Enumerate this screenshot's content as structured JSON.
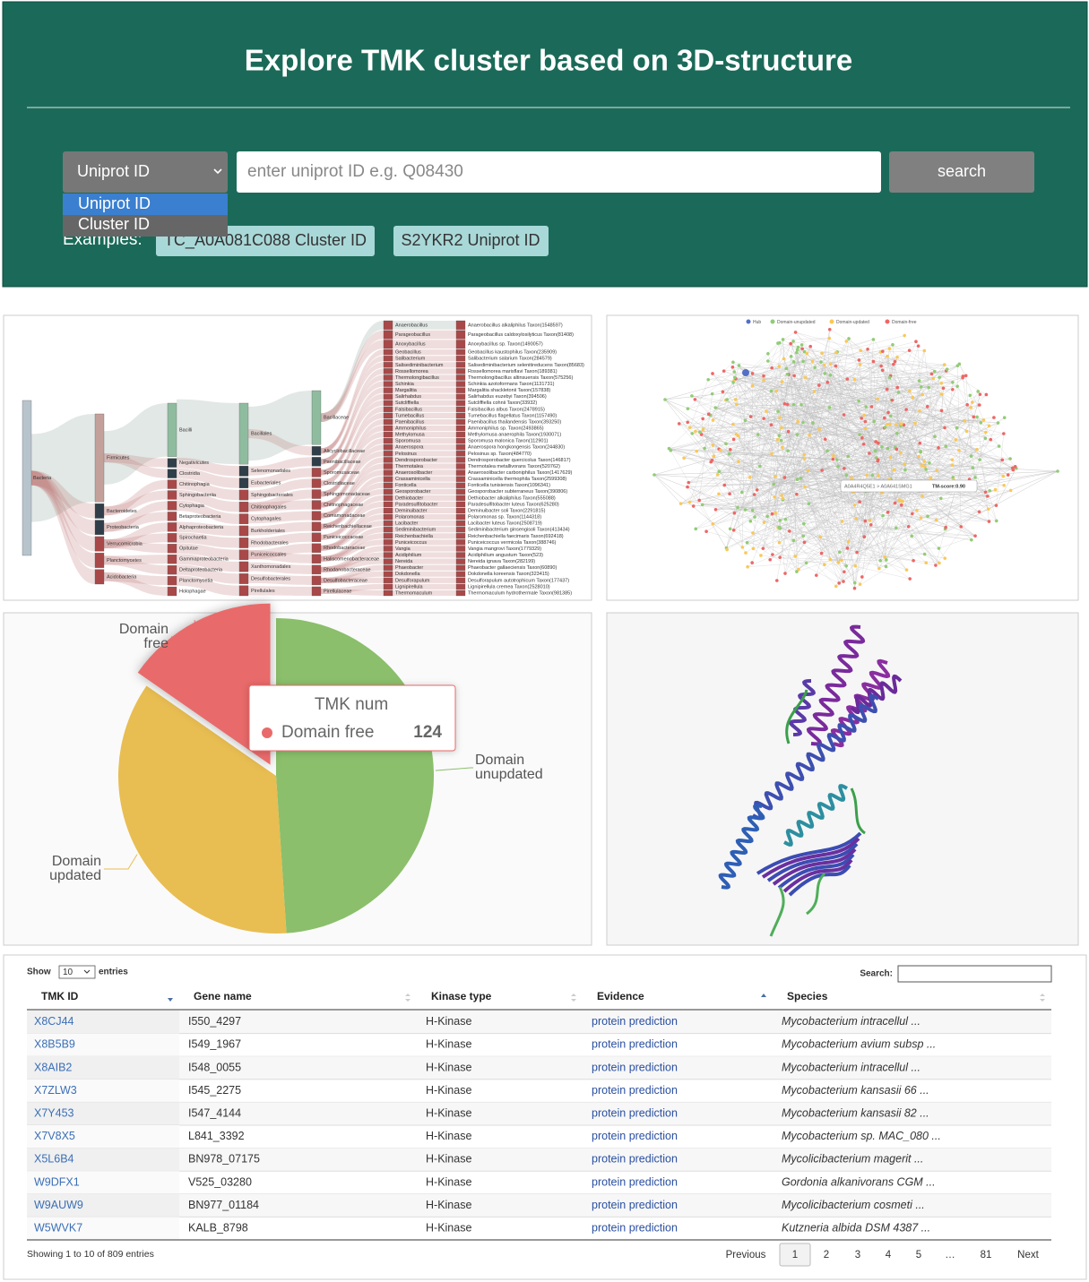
{
  "header": {
    "title": "Explore TMK cluster based on 3D-structure",
    "select": {
      "selected": "Uniprot ID",
      "options": [
        "Uniprot ID",
        "Cluster ID"
      ]
    },
    "input_placeholder": "enter uniprot ID e.g. Q08430",
    "button": "search",
    "examples_label": "Examples:",
    "examples": [
      "TC_A0A081C088 Cluster ID",
      "S2YKR2 Uniprot ID"
    ]
  },
  "sankey": {
    "columns": [
      [
        "Bacteria"
      ],
      [
        "Firmicutes",
        "Bacteroidetes",
        "Proteobacteria",
        "Verrucomicrobia",
        "Planctomycetes",
        "Acidobacteria"
      ],
      [
        "Bacilli",
        "Negativicutes",
        "Clostridia",
        "Chitinophagia",
        "Sphingobacteriia",
        "Cytophagia",
        "Betaproteobacteria",
        "Alphaproteobacteria",
        "Spirochaetia",
        "Opitutae",
        "Gammaproteobacteria",
        "Deltaproteobacteria",
        "Planctomycetia",
        "Holophagae"
      ],
      [
        "Bacillales",
        "Selenomonadales",
        "Eubacteriales",
        "Sphingobacteriales",
        "Chitinophagales",
        "Cytophagales",
        "Burkholderiales",
        "Rhodobacterales",
        "Puniceicoccales",
        "Xanthomonadales",
        "Desulfobacterales",
        "Pirellulales"
      ],
      [
        "Bacillaceae",
        "Alicyclobacillaceae",
        "Paenibacillaceae",
        "Sporomusaceae",
        "Clostridiaceae",
        "Sphingomonadaceae",
        "Chitinophagaceae",
        "Comamonadaceae",
        "Reichenbachiellaceae",
        "Puniceicoccaceae",
        "Rhodobacteraceae",
        "Haliscomenobacteraceae",
        "Rhodanobacteraceae",
        "Desulfobacteraceae",
        "Pirellulaceae"
      ],
      [
        "Anaerobacillus",
        "Parageobacillus",
        "Anoxybacillus",
        "Geobacillus",
        "Salibacterium",
        "Salisediminibacterium",
        "Rossellomorea",
        "Thermolongibacillus",
        "Schinkia",
        "Margalitia",
        "Salirhabdus",
        "Sutcliffiella",
        "Falsibacillus",
        "Tumebacillus",
        "Paenibacillus",
        "Ammoniphilus",
        "Methylomusa",
        "Sporomusa",
        "Anaerospora",
        "Pelosinus",
        "Dendrosporobacter",
        "Thermotalea",
        "Anaerosolibacter",
        "Crassaminicella",
        "Fonticella",
        "Geosporobacter",
        "Dethiobacter",
        "Paradesulfitobacter",
        "Deminuibacter",
        "Polaromonas",
        "Lacibacter",
        "Sediminibacterium",
        "Reichenbachiella",
        "Puniceicoccus",
        "Vangia",
        "Acidiphilium",
        "Nereida",
        "Phaeobacter",
        "Dokdonella",
        "Desulforapulum",
        "Lignipirellula",
        "Thermomaculum"
      ],
      [
        "Anaerobacillus alkaliphilus Taxon(1548597)",
        "Parageobacillus caldoxylosilyticus Taxon(81408)",
        "Anoxybacillus sp. Taxon(1490057)",
        "Geobacillus kaustophilus Taxon(235909)",
        "Salibacterium salarium Taxon(284579)",
        "Salisediminibacterium selenitireducens Taxon(85683)",
        "Rossellomorea marisflavi Taxon(189381)",
        "Thermolongibacillus altinsuensis Taxon(575256)",
        "Schinkia azotoformans Taxon(1131731)",
        "Margalitia shackletonii Taxon(157838)",
        "Salirhabdus euzebyi Taxon(394506)",
        "Sutcliffiella cohnii Taxon(33932)",
        "Falsibacillus albus Taxon(2478915)",
        "Tumebacillus flagellatus Taxon(1157490)",
        "Paenibacillus thailandensis Taxon(393250)",
        "Ammoniphilus sp. Taxon(2493865)",
        "Methylomusa anaerophila Taxon(1930071)",
        "Sporomusa malonica Taxon(112901)",
        "Anaerospora hongkongensis Taxon(244830)",
        "Pelosinus sp. Taxon(484770)",
        "Dendrosporobacter quercicolus Taxon(146817)",
        "Thermotalea metallivorans Taxon(520762)",
        "Anaerosolibacter carboniphilus Taxon(1417629)",
        "Crassaminicella thermophila Taxon(2599308)",
        "Fonticella tunisiensis Taxon(1096341)",
        "Geosporobacter subterraneus Taxon(390806)",
        "Dethiobacter alkaliphilus Taxon(555088)",
        "Paradesulfitobacter luteus Taxon(625280)",
        "Deminuibacter soli Taxon(2291815)",
        "Polaromonas sp. Taxon(1144318)",
        "Lacibacter luteus Taxon(2508719)",
        "Sediminibacterium ginsengisoli Taxon(413434)",
        "Reichenbachiella faecimaris Taxon(692418)",
        "Puniceicoccus vermicola Taxon(388746)",
        "Vangia mangrovi Taxon(1779329)",
        "Acidiphilium angustum Taxon(523)",
        "Nereida ignava Taxon(282199)",
        "Phaeobacter gallaeciensis Taxon(60890)",
        "Dokdonella koreensis Taxon(323415)",
        "Desulforapulum autotrophicum Taxon(177437)",
        "Lignipirellula cremea Taxon(2528010)",
        "Thermomaculum hydrothermale Taxon(981385)"
      ]
    ]
  },
  "network": {
    "legend": [
      {
        "name": "Hub",
        "color": "#5470c6"
      },
      {
        "name": "Domain-unupdated",
        "color": "#91cc75"
      },
      {
        "name": "Domain-updated",
        "color": "#fac858"
      },
      {
        "name": "Domain-free",
        "color": "#ee6666"
      }
    ],
    "tooltip": {
      "edge": "A0A4R4Q5E1 > A0A641SMG1",
      "score": "TM-score:0.90"
    }
  },
  "chart_data": {
    "type": "pie",
    "series_name": "TMK num",
    "categories": [
      "Domain unupdated",
      "Domain updated",
      "Domain free"
    ],
    "values": [
      396,
      289,
      124
    ],
    "colors": [
      "#8bbf6b",
      "#e8bd52",
      "#e96a6a"
    ],
    "highlighted": 2
  },
  "table": {
    "show_label": "Show",
    "page_length": "10",
    "entries_label": "entries",
    "search_label": "Search:",
    "columns": [
      "TMK ID",
      "Gene name",
      "Kinase type",
      "Evidence",
      "Species"
    ],
    "rows": [
      [
        "X8CJ44",
        "I550_4297",
        "H-Kinase",
        "protein prediction",
        "Mycobacterium intracellul ..."
      ],
      [
        "X8B5B9",
        "I549_1967",
        "H-Kinase",
        "protein prediction",
        "Mycobacterium avium subsp ..."
      ],
      [
        "X8AIB2",
        "I548_0055",
        "H-Kinase",
        "protein prediction",
        "Mycobacterium intracellul ..."
      ],
      [
        "X7ZLW3",
        "I545_2275",
        "H-Kinase",
        "protein prediction",
        "Mycobacterium kansasii 66 ..."
      ],
      [
        "X7Y453",
        "I547_4144",
        "H-Kinase",
        "protein prediction",
        "Mycobacterium kansasii 82 ..."
      ],
      [
        "X7V8X5",
        "L841_3392",
        "H-Kinase",
        "protein prediction",
        "Mycobacterium sp. MAC_080 ..."
      ],
      [
        "X5L6B4",
        "BN978_07175",
        "H-Kinase",
        "protein prediction",
        "Mycolicibacterium magerit ..."
      ],
      [
        "W9DFX1",
        "V525_03280",
        "H-Kinase",
        "protein prediction",
        "Gordonia alkanivorans CGM ..."
      ],
      [
        "W9AUW9",
        "BN977_01184",
        "H-Kinase",
        "protein prediction",
        "Mycolicibacterium cosmeti ..."
      ],
      [
        "W5WVK7",
        "KALB_8798",
        "H-Kinase",
        "protein prediction",
        "Kutzneria albida DSM 4387 ..."
      ]
    ],
    "info": "Showing 1 to 10 of 809 entries",
    "pagination": [
      "Previous",
      "1",
      "2",
      "3",
      "4",
      "5",
      "…",
      "81",
      "Next"
    ]
  }
}
